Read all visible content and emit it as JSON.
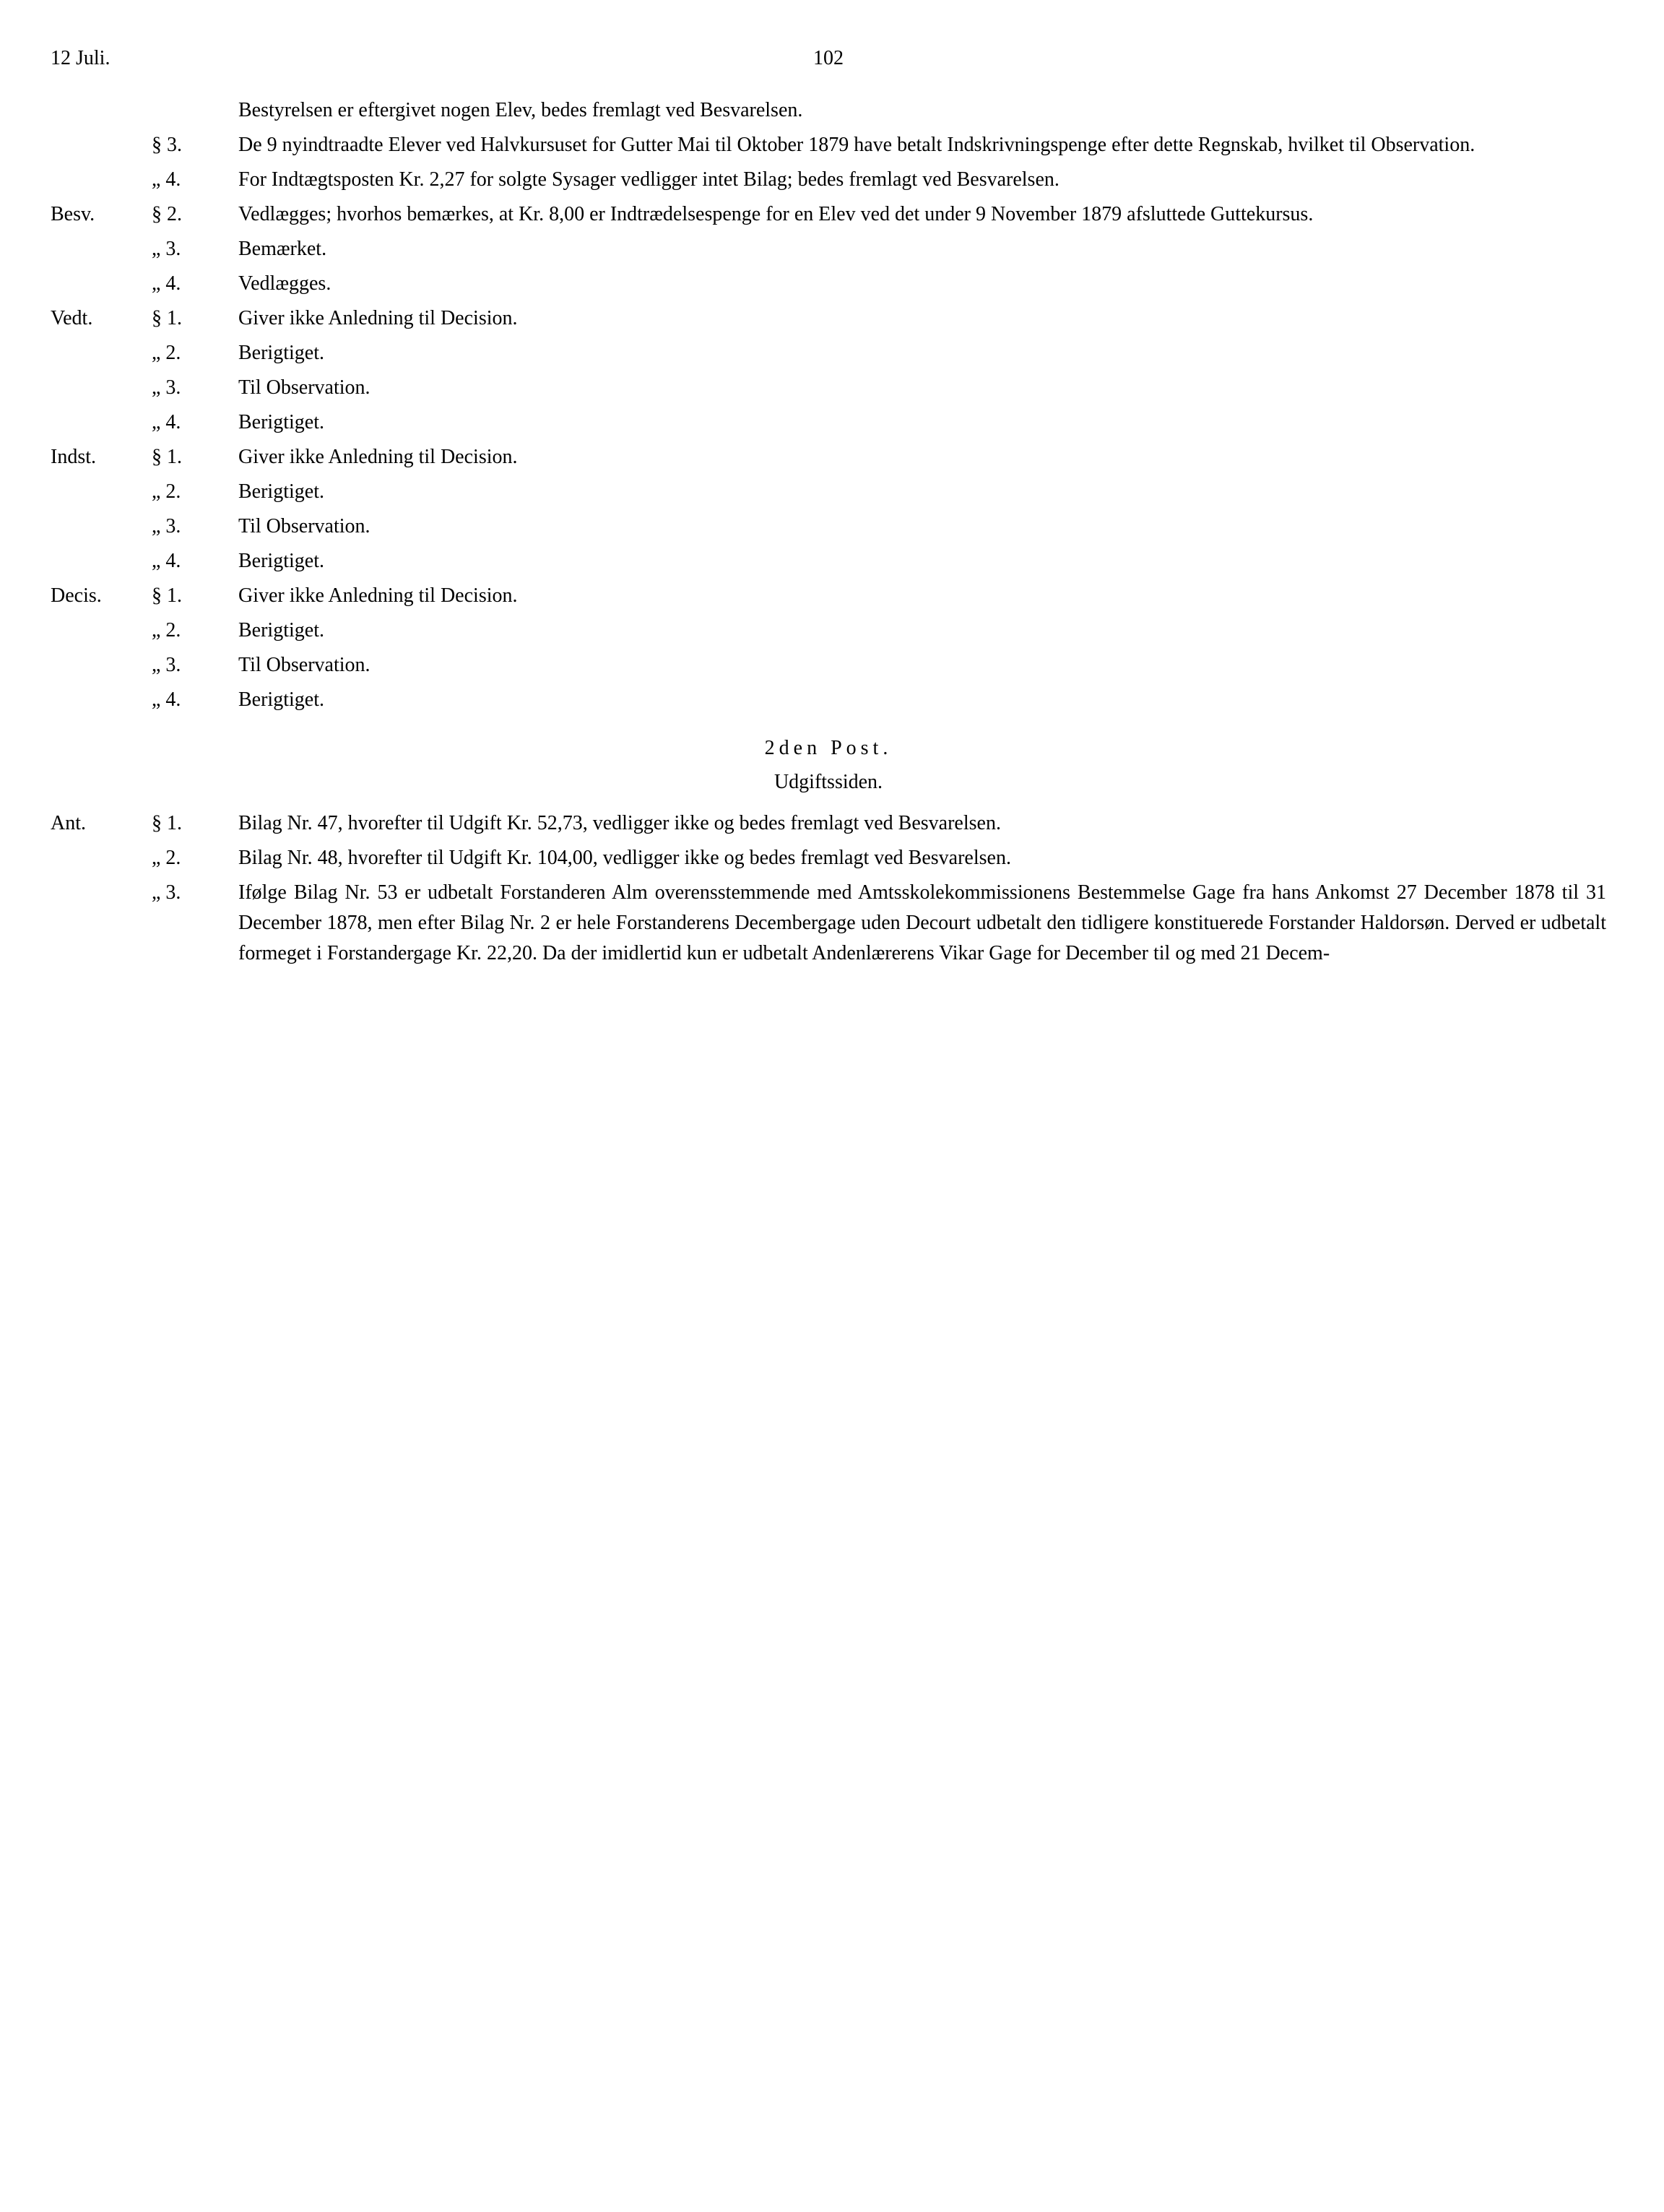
{
  "header": {
    "left": "12 Juli.",
    "page_no": "102"
  },
  "rows": [
    {
      "margin": "",
      "marker": "",
      "body": "Bestyrelsen er eftergivet nogen Elev, bedes fremlagt ved Besvarelsen."
    },
    {
      "margin": "",
      "marker": "§ 3.",
      "body": "De 9 nyindtraadte Elever ved Halvkursuset for Gutter Mai til Oktober 1879 have betalt Indskrivningspenge efter dette Regnskab, hvilket til Observation."
    },
    {
      "margin": "",
      "marker": "„ 4.",
      "body": "For Indtægtsposten Kr. 2,27 for solgte Sysager vedligger intet Bilag; bedes fremlagt ved Besvarelsen."
    },
    {
      "margin": "Besv.",
      "marker": "§ 2.",
      "body": "Vedlægges; hvorhos bemærkes, at Kr. 8,00 er Indtrædelsespenge for en Elev ved det under 9 November 1879 afsluttede Guttekursus."
    },
    {
      "margin": "",
      "marker": "„ 3.",
      "body": "Bemærket."
    },
    {
      "margin": "",
      "marker": "„ 4.",
      "body": "Vedlægges."
    },
    {
      "margin": "Vedt.",
      "marker": "§ 1.",
      "body": "Giver ikke Anledning til Decision."
    },
    {
      "margin": "",
      "marker": "„ 2.",
      "body": "Berigtiget."
    },
    {
      "margin": "",
      "marker": "„ 3.",
      "body": "Til Observation."
    },
    {
      "margin": "",
      "marker": "„ 4.",
      "body": "Berigtiget."
    },
    {
      "margin": "Indst.",
      "marker": "§ 1.",
      "body": "Giver ikke Anledning til Decision."
    },
    {
      "margin": "",
      "marker": "„ 2.",
      "body": "Berigtiget."
    },
    {
      "margin": "",
      "marker": "„ 3.",
      "body": "Til Observation."
    },
    {
      "margin": "",
      "marker": "„ 4.",
      "body": "Berigtiget."
    },
    {
      "margin": "Decis.",
      "marker": "§ 1.",
      "body": "Giver ikke Anledning til Decision."
    },
    {
      "margin": "",
      "marker": "„ 2.",
      "body": "Berigtiget."
    },
    {
      "margin": "",
      "marker": "„ 3.",
      "body": "Til Observation."
    },
    {
      "margin": "",
      "marker": "„ 4.",
      "body": "Berigtiget."
    }
  ],
  "section": {
    "heading": "2den Post.",
    "sub": "Udgiftssiden."
  },
  "rows2": [
    {
      "margin": "Ant.",
      "marker": "§ 1.",
      "body": "Bilag Nr. 47, hvorefter til Udgift Kr. 52,73, vedligger ikke og bedes fremlagt ved Besvarelsen."
    },
    {
      "margin": "",
      "marker": "„ 2.",
      "body": "Bilag Nr. 48, hvorefter til Udgift Kr. 104,00, vedligger ikke og bedes fremlagt ved Besvarelsen."
    },
    {
      "margin": "",
      "marker": "„ 3.",
      "body": "Ifølge Bilag Nr. 53 er udbetalt Forstanderen Alm overensstemmende med Amtsskolekommissionens Bestemmelse Gage fra hans Ankomst 27 December 1878 til 31 December 1878, men efter Bilag Nr. 2 er hele Forstanderens Decembergage uden Decourt udbetalt den tidligere konstituerede Forstander Haldorsøn. Derved er udbetalt formeget i Forstandergage Kr. 22,20. Da der imidlertid kun er udbetalt Andenlærerens Vikar Gage for December til og med 21 Decem-"
    }
  ],
  "style": {
    "background_color": "#ffffff",
    "text_color": "#000000",
    "font_family": "Times New Roman",
    "font_size_pt": 21
  }
}
